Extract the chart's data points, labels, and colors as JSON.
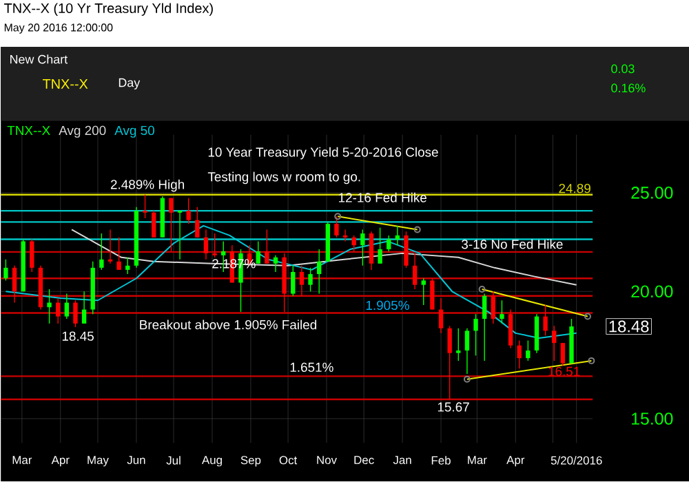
{
  "chart_data": {
    "type": "candlestick",
    "title": "TNX--X (10 Yr Treasury Yld Index)",
    "subtitle": "May 20 2016 12:00:00",
    "log": "y",
    "grid": true,
    "legend": "top left",
    "xlim": [
      "2015-02-12",
      "2016-06-02"
    ],
    "xticks": [
      {
        "value": "2015-03-01",
        "label": "Mar"
      },
      {
        "value": "2015-04-01",
        "label": "Apr"
      },
      {
        "value": "2015-05-01",
        "label": "May"
      },
      {
        "value": "2015-06-01",
        "label": "Jun"
      },
      {
        "value": "2015-07-01",
        "label": "Jul"
      },
      {
        "value": "2015-08-01",
        "label": "Aug"
      },
      {
        "value": "2015-09-01",
        "label": "Sep"
      },
      {
        "value": "2015-10-01",
        "label": "Oct"
      },
      {
        "value": "2015-11-01",
        "label": "Nov"
      },
      {
        "value": "2015-12-01",
        "label": "Dec"
      },
      {
        "value": "2016-01-01",
        "label": "Jan"
      },
      {
        "value": "2016-02-01",
        "label": "Feb"
      },
      {
        "value": "2016-03-01",
        "label": "Mar"
      },
      {
        "value": "2016-04-01",
        "label": "Apr"
      },
      {
        "value": "2016-05-01",
        "label": null
      },
      {
        "value": "2016-05-20",
        "label": "5/20/2016"
      }
    ],
    "ylim": [
      14.2,
      28.5
    ],
    "yticks": [
      {
        "value": 15,
        "label": "15.00"
      },
      {
        "value": 20,
        "label": "20.00"
      },
      {
        "value": 25,
        "label": "25.00"
      }
    ],
    "series": [
      {
        "name": "TNX--X",
        "x": [
          "2015-02-16",
          "2015-02-23",
          "2015-03-02",
          "2015-03-09",
          "2015-03-16",
          "2015-03-23",
          "2015-03-30",
          "2015-04-06",
          "2015-04-13",
          "2015-04-20",
          "2015-04-27",
          "2015-05-04",
          "2015-05-11",
          "2015-05-18",
          "2015-05-25",
          "2015-06-01",
          "2015-06-08",
          "2015-06-15",
          "2015-06-22",
          "2015-06-29",
          "2015-07-06",
          "2015-07-13",
          "2015-07-20",
          "2015-07-27",
          "2015-08-03",
          "2015-08-10",
          "2015-08-17",
          "2015-08-24",
          "2015-08-31",
          "2015-09-07",
          "2015-09-14",
          "2015-09-21",
          "2015-09-28",
          "2015-10-05",
          "2015-10-12",
          "2015-10-19",
          "2015-10-26",
          "2015-11-02",
          "2015-11-09",
          "2015-11-16",
          "2015-11-23",
          "2015-11-30",
          "2015-12-07",
          "2015-12-14",
          "2015-12-21",
          "2015-12-28",
          "2016-01-04",
          "2016-01-11",
          "2016-01-18",
          "2016-01-25",
          "2016-02-01",
          "2016-02-08",
          "2016-02-15",
          "2016-02-22",
          "2016-02-29",
          "2016-03-07",
          "2016-03-14",
          "2016-03-21",
          "2016-03-28",
          "2016-04-04",
          "2016-04-11",
          "2016-04-18",
          "2016-04-25",
          "2016-05-02",
          "2016-05-09",
          "2016-05-16"
        ],
        "ohlc": [
          [
            20.6,
            21.5,
            20.5,
            21.1
          ],
          [
            21.1,
            21.2,
            19.5,
            20.0
          ],
          [
            20.0,
            22.5,
            20.0,
            22.4
          ],
          [
            22.4,
            22.5,
            20.9,
            21.1
          ],
          [
            21.1,
            21.2,
            19.2,
            19.3
          ],
          [
            19.3,
            20.1,
            18.6,
            19.5
          ],
          [
            19.5,
            19.7,
            18.6,
            18.9
          ],
          [
            18.9,
            19.9,
            18.8,
            19.5
          ],
          [
            19.5,
            19.6,
            18.45,
            18.6
          ],
          [
            18.6,
            20.0,
            18.6,
            19.2
          ],
          [
            19.2,
            21.4,
            19.0,
            21.1
          ],
          [
            21.1,
            22.8,
            21.0,
            21.5
          ],
          [
            21.5,
            23.0,
            21.3,
            21.4
          ],
          [
            21.4,
            22.6,
            21.0,
            21.0
          ],
          [
            21.0,
            21.6,
            20.8,
            21.2
          ],
          [
            21.2,
            24.2,
            21.1,
            24.0
          ],
          [
            24.0,
            24.89,
            23.6,
            23.9
          ],
          [
            23.9,
            24.0,
            22.6,
            22.6
          ],
          [
            22.6,
            24.8,
            22.6,
            24.7
          ],
          [
            24.7,
            24.7,
            21.9,
            23.9
          ],
          [
            23.9,
            24.0,
            21.5,
            24.0
          ],
          [
            24.0,
            24.7,
            23.3,
            23.5
          ],
          [
            23.5,
            24.2,
            22.6,
            22.6
          ],
          [
            22.6,
            23.0,
            21.5,
            21.8
          ],
          [
            21.8,
            22.8,
            21.6,
            21.7
          ],
          [
            21.7,
            22.4,
            20.9,
            21.9
          ],
          [
            21.9,
            22.2,
            20.4,
            20.4
          ],
          [
            20.4,
            22.0,
            19.1,
            21.8
          ],
          [
            21.8,
            22.2,
            21.2,
            21.3
          ],
          [
            21.3,
            22.4,
            21.3,
            21.9
          ],
          [
            21.9,
            23.0,
            21.3,
            21.3
          ],
          [
            21.3,
            21.7,
            20.9,
            21.6
          ],
          [
            21.6,
            21.8,
            19.1,
            19.9
          ],
          [
            19.9,
            21.2,
            19.8,
            20.9
          ],
          [
            20.9,
            21.2,
            19.8,
            20.3
          ],
          [
            20.3,
            21.1,
            20.0,
            20.8
          ],
          [
            20.8,
            22.0,
            19.9,
            21.4
          ],
          [
            21.4,
            23.4,
            21.4,
            23.3
          ],
          [
            23.3,
            23.7,
            22.6,
            22.7
          ],
          [
            22.7,
            23.0,
            22.4,
            22.6
          ],
          [
            22.6,
            22.7,
            21.9,
            22.2
          ],
          [
            22.2,
            23.0,
            21.2,
            22.8
          ],
          [
            22.8,
            22.9,
            21.0,
            21.3
          ],
          [
            21.3,
            23.1,
            21.3,
            22.0
          ],
          [
            22.0,
            22.7,
            21.9,
            22.5
          ],
          [
            22.5,
            23.2,
            22.2,
            22.7
          ],
          [
            22.7,
            22.9,
            21.1,
            21.2
          ],
          [
            21.2,
            21.8,
            20.1,
            20.3
          ],
          [
            20.3,
            20.6,
            19.4,
            20.5
          ],
          [
            20.5,
            20.6,
            19.2,
            19.2
          ],
          [
            19.2,
            19.7,
            18.2,
            18.4
          ],
          [
            18.4,
            18.5,
            15.67,
            17.4
          ],
          [
            17.4,
            18.4,
            17.1,
            17.5
          ],
          [
            17.5,
            18.4,
            16.6,
            18.3
          ],
          [
            18.3,
            19.0,
            17.3,
            18.8
          ],
          [
            18.8,
            19.9,
            17.1,
            19.8
          ],
          [
            19.8,
            20.0,
            18.6,
            18.8
          ],
          [
            18.8,
            19.6,
            18.6,
            19.0
          ],
          [
            19.0,
            19.2,
            17.6,
            17.7
          ],
          [
            17.7,
            17.9,
            16.8,
            17.2
          ],
          [
            17.2,
            17.9,
            17.1,
            17.5
          ],
          [
            17.5,
            19.0,
            17.4,
            18.9
          ],
          [
            18.9,
            19.4,
            18.1,
            18.3
          ],
          [
            18.3,
            18.5,
            17.1,
            17.8
          ],
          [
            17.8,
            17.8,
            16.9,
            17.0
          ],
          [
            17.0,
            18.8,
            17.0,
            18.48
          ]
        ],
        "colors": [
          "#00ff00",
          "#ff0000",
          "#00ff00",
          "#ff0000",
          "#ff0000",
          "#00ff00",
          "#ff0000",
          "#00ff00",
          "#ff0000",
          "#00ff00",
          "#00ff00",
          "#00ff00",
          "#ff0000",
          "#ff0000",
          "#00ff00",
          "#00ff00",
          "#ff0000",
          "#ff0000",
          "#00ff00",
          "#ff0000",
          "#00ff00",
          "#ff0000",
          "#ff0000",
          "#ff0000",
          "#ff0000",
          "#00ff00",
          "#ff0000",
          "#00ff00",
          "#ff0000",
          "#00ff00",
          "#ff0000",
          "#00ff00",
          "#ff0000",
          "#00ff00",
          "#ff0000",
          "#00ff00",
          "#00ff00",
          "#00ff00",
          "#ff0000",
          "#ff0000",
          "#ff0000",
          "#00ff00",
          "#ff0000",
          "#00ff00",
          "#00ff00",
          "#00ff00",
          "#ff0000",
          "#ff0000",
          "#00ff00",
          "#ff0000",
          "#ff0000",
          "#ff0000",
          "#00ff00",
          "#00ff00",
          "#00ff00",
          "#00ff00",
          "#ff0000",
          "#00ff00",
          "#ff0000",
          "#ff0000",
          "#00ff00",
          "#00ff00",
          "#ff0000",
          "#ff0000",
          "#ff0000",
          "#00ff00"
        ]
      },
      {
        "type": "line",
        "name": "Avg 200",
        "color": "#d8d8d8",
        "x": [
          "2015-04-10",
          "2015-05-20",
          "2015-06-15",
          "2015-08-01",
          "2015-10-01",
          "2015-11-15",
          "2016-01-01",
          "2016-02-15",
          "2016-03-15",
          "2016-04-15",
          "2016-05-20"
        ],
        "values": [
          23.0,
          21.6,
          21.4,
          21.3,
          21.2,
          21.5,
          21.8,
          21.6,
          21.1,
          20.7,
          20.3
        ]
      },
      {
        "type": "line",
        "name": "Avg 50",
        "color": "#00c8d8",
        "x": [
          "2015-02-16",
          "2015-04-01",
          "2015-05-01",
          "2015-06-01",
          "2015-07-01",
          "2015-07-25",
          "2015-08-15",
          "2015-09-15",
          "2015-10-20",
          "2015-11-20",
          "2015-12-20",
          "2016-01-15",
          "2016-02-10",
          "2016-03-10",
          "2016-04-01",
          "2016-04-20",
          "2016-05-20"
        ],
        "values": [
          20.0,
          19.7,
          19.6,
          20.6,
          22.3,
          23.2,
          22.7,
          21.5,
          21.0,
          22.0,
          22.4,
          21.8,
          20.0,
          19.1,
          18.2,
          18.0,
          18.2
        ]
      },
      {
        "type": "line",
        "color": "#e8e800",
        "marker": "circle",
        "x": [
          "2015-11-10",
          "2016-01-13"
        ],
        "values": [
          23.7,
          23.0
        ]
      },
      {
        "type": "line",
        "color": "#e8e800",
        "marker": "circle",
        "x": [
          "2016-03-05",
          "2016-05-29"
        ],
        "values": [
          20.1,
          18.9
        ]
      },
      {
        "type": "line",
        "color": "#e8e800",
        "marker": "circle",
        "x": [
          "2016-02-22",
          "2016-06-01"
        ],
        "values": [
          16.4,
          17.1
        ]
      }
    ],
    "ref_lines": [
      {
        "axis": "y",
        "value": 24.89,
        "label": "24.89",
        "color": "#d8d800"
      },
      {
        "axis": "y",
        "value": 24.0,
        "color": "#00c8c8"
      },
      {
        "axis": "y",
        "value": 23.4,
        "color": "#00c8c8"
      },
      {
        "axis": "y",
        "value": 22.5,
        "color": "#00c8c8"
      },
      {
        "axis": "y",
        "value": 21.87,
        "color": "#cc0000"
      },
      {
        "axis": "y",
        "value": 20.6,
        "color": "#cc0000"
      },
      {
        "axis": "y",
        "value": 19.8,
        "color": "#cc0000"
      },
      {
        "axis": "y",
        "value": 19.05,
        "color": "#cc0000"
      },
      {
        "axis": "y",
        "value": 16.51,
        "color": "#cc0000"
      },
      {
        "axis": "y",
        "value": 15.67,
        "color": "#cc0000"
      }
    ],
    "annotations": [
      "10 Year Treasury Yield 5-20-2016 Close",
      "Testing lows w room to go.",
      {
        "text": "2.489% High",
        "x": "2015-06-10",
        "y": 24.89
      },
      {
        "text": "12-16 Fed Hike",
        "x": "2015-12-16",
        "y": 24.0
      },
      {
        "text": "3-16 No Fed Hike",
        "x": "2016-03-16",
        "y": 21.87
      },
      {
        "text": "2.187%",
        "x": "2015-08-25",
        "y": 21.87
      },
      {
        "text": "1.905%",
        "x": "2015-12-20",
        "y": 19.05
      },
      "Breakout above 1.905% Failed",
      {
        "text": "1.651%",
        "x": "2015-10-20",
        "y": 16.51
      },
      {
        "text": "18.45",
        "x": "2015-04-15",
        "y": 18.45
      },
      {
        "text": "15.67",
        "x": "2016-02-11",
        "y": 15.67
      },
      {
        "text": "16.51",
        "x": "2016-05-10",
        "y": 16.51
      },
      {
        "text": "18.48",
        "x": "2016-05-20",
        "y": 18.48
      },
      "New Chart",
      "Day",
      "0.03",
      "0.16%"
    ]
  }
}
